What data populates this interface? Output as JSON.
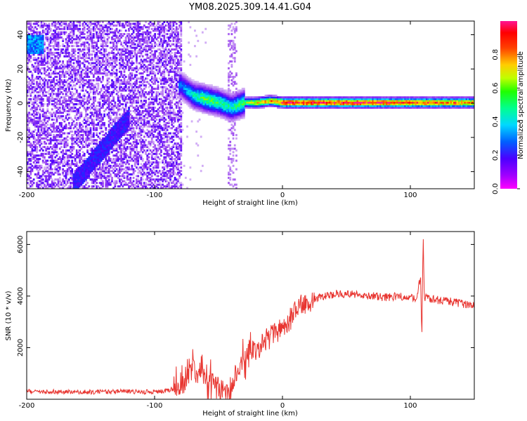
{
  "title": "YM08.2025.309.14.41.G04",
  "colors": {
    "snr_line": "#e8342f",
    "ridge": "#ff2a1a",
    "background": "#ffffff",
    "axis": "#000000"
  },
  "colormap": [
    "#ffffff",
    "#d7b8f5",
    "#8a2be2",
    "#4b00ff",
    "#0040ff",
    "#00d8ff",
    "#00ff80",
    "#7fff00",
    "#ffff00",
    "#ff8000",
    "#ff0000",
    "#ff1493"
  ],
  "chart_data": [
    {
      "type": "heatmap",
      "xlabel": "Height of straight line (km)",
      "ylabel": "Frequency (Hz)",
      "xlim": [
        -200,
        150
      ],
      "ylim": [
        -50,
        48
      ],
      "xticks": [
        -200,
        -100,
        0,
        100
      ],
      "yticks": [
        -40,
        -20,
        0,
        20,
        40
      ],
      "colorbar": {
        "label": "Normalized spectral amplitude",
        "range": [
          0,
          1
        ],
        "ticks": [
          "0.0",
          "0.2",
          "0.4",
          "0.6",
          "0.8"
        ]
      },
      "ridge": {
        "description_points_x": [
          -80,
          -70,
          -60,
          -50,
          -40,
          -30,
          -20,
          -10,
          0,
          50,
          100,
          150
        ],
        "frequency_hz": [
          10,
          4,
          2,
          0,
          -3,
          0,
          0,
          1,
          0,
          0,
          0,
          0
        ],
        "amplitude": [
          0.35,
          0.5,
          0.6,
          0.55,
          0.5,
          0.6,
          0.75,
          0.8,
          0.95,
          0.95,
          0.9,
          0.85
        ]
      }
    },
    {
      "type": "line",
      "xlabel": "Height of straight line (km)",
      "ylabel": "SNR (10 * v/v)",
      "xlim": [
        -200,
        150
      ],
      "ylim": [
        0,
        6500
      ],
      "xticks": [
        -200,
        -100,
        0,
        100
      ],
      "yticks": [
        2000,
        4000,
        6000
      ],
      "series": [
        {
          "name": "SNR",
          "x": [
            -200,
            -180,
            -160,
            -140,
            -120,
            -100,
            -90,
            -80,
            -75,
            -70,
            -65,
            -60,
            -55,
            -50,
            -45,
            -40,
            -35,
            -30,
            -25,
            -20,
            -15,
            -10,
            -5,
            0,
            5,
            10,
            15,
            20,
            25,
            30,
            40,
            50,
            60,
            70,
            80,
            90,
            100,
            105,
            108,
            109,
            110,
            111,
            112,
            115,
            120,
            130,
            140,
            150
          ],
          "y": [
            300,
            300,
            280,
            280,
            300,
            280,
            350,
            450,
            700,
            1200,
            1100,
            900,
            700,
            500,
            300,
            250,
            1200,
            1500,
            2000,
            1800,
            2200,
            2400,
            2600,
            2800,
            3000,
            3400,
            3700,
            3800,
            3900,
            4000,
            4050,
            4100,
            4050,
            4000,
            3950,
            4000,
            3950,
            3950,
            4800,
            2400,
            6300,
            3900,
            4000,
            3900,
            3850,
            3800,
            3700,
            3600
          ]
        }
      ]
    }
  ]
}
